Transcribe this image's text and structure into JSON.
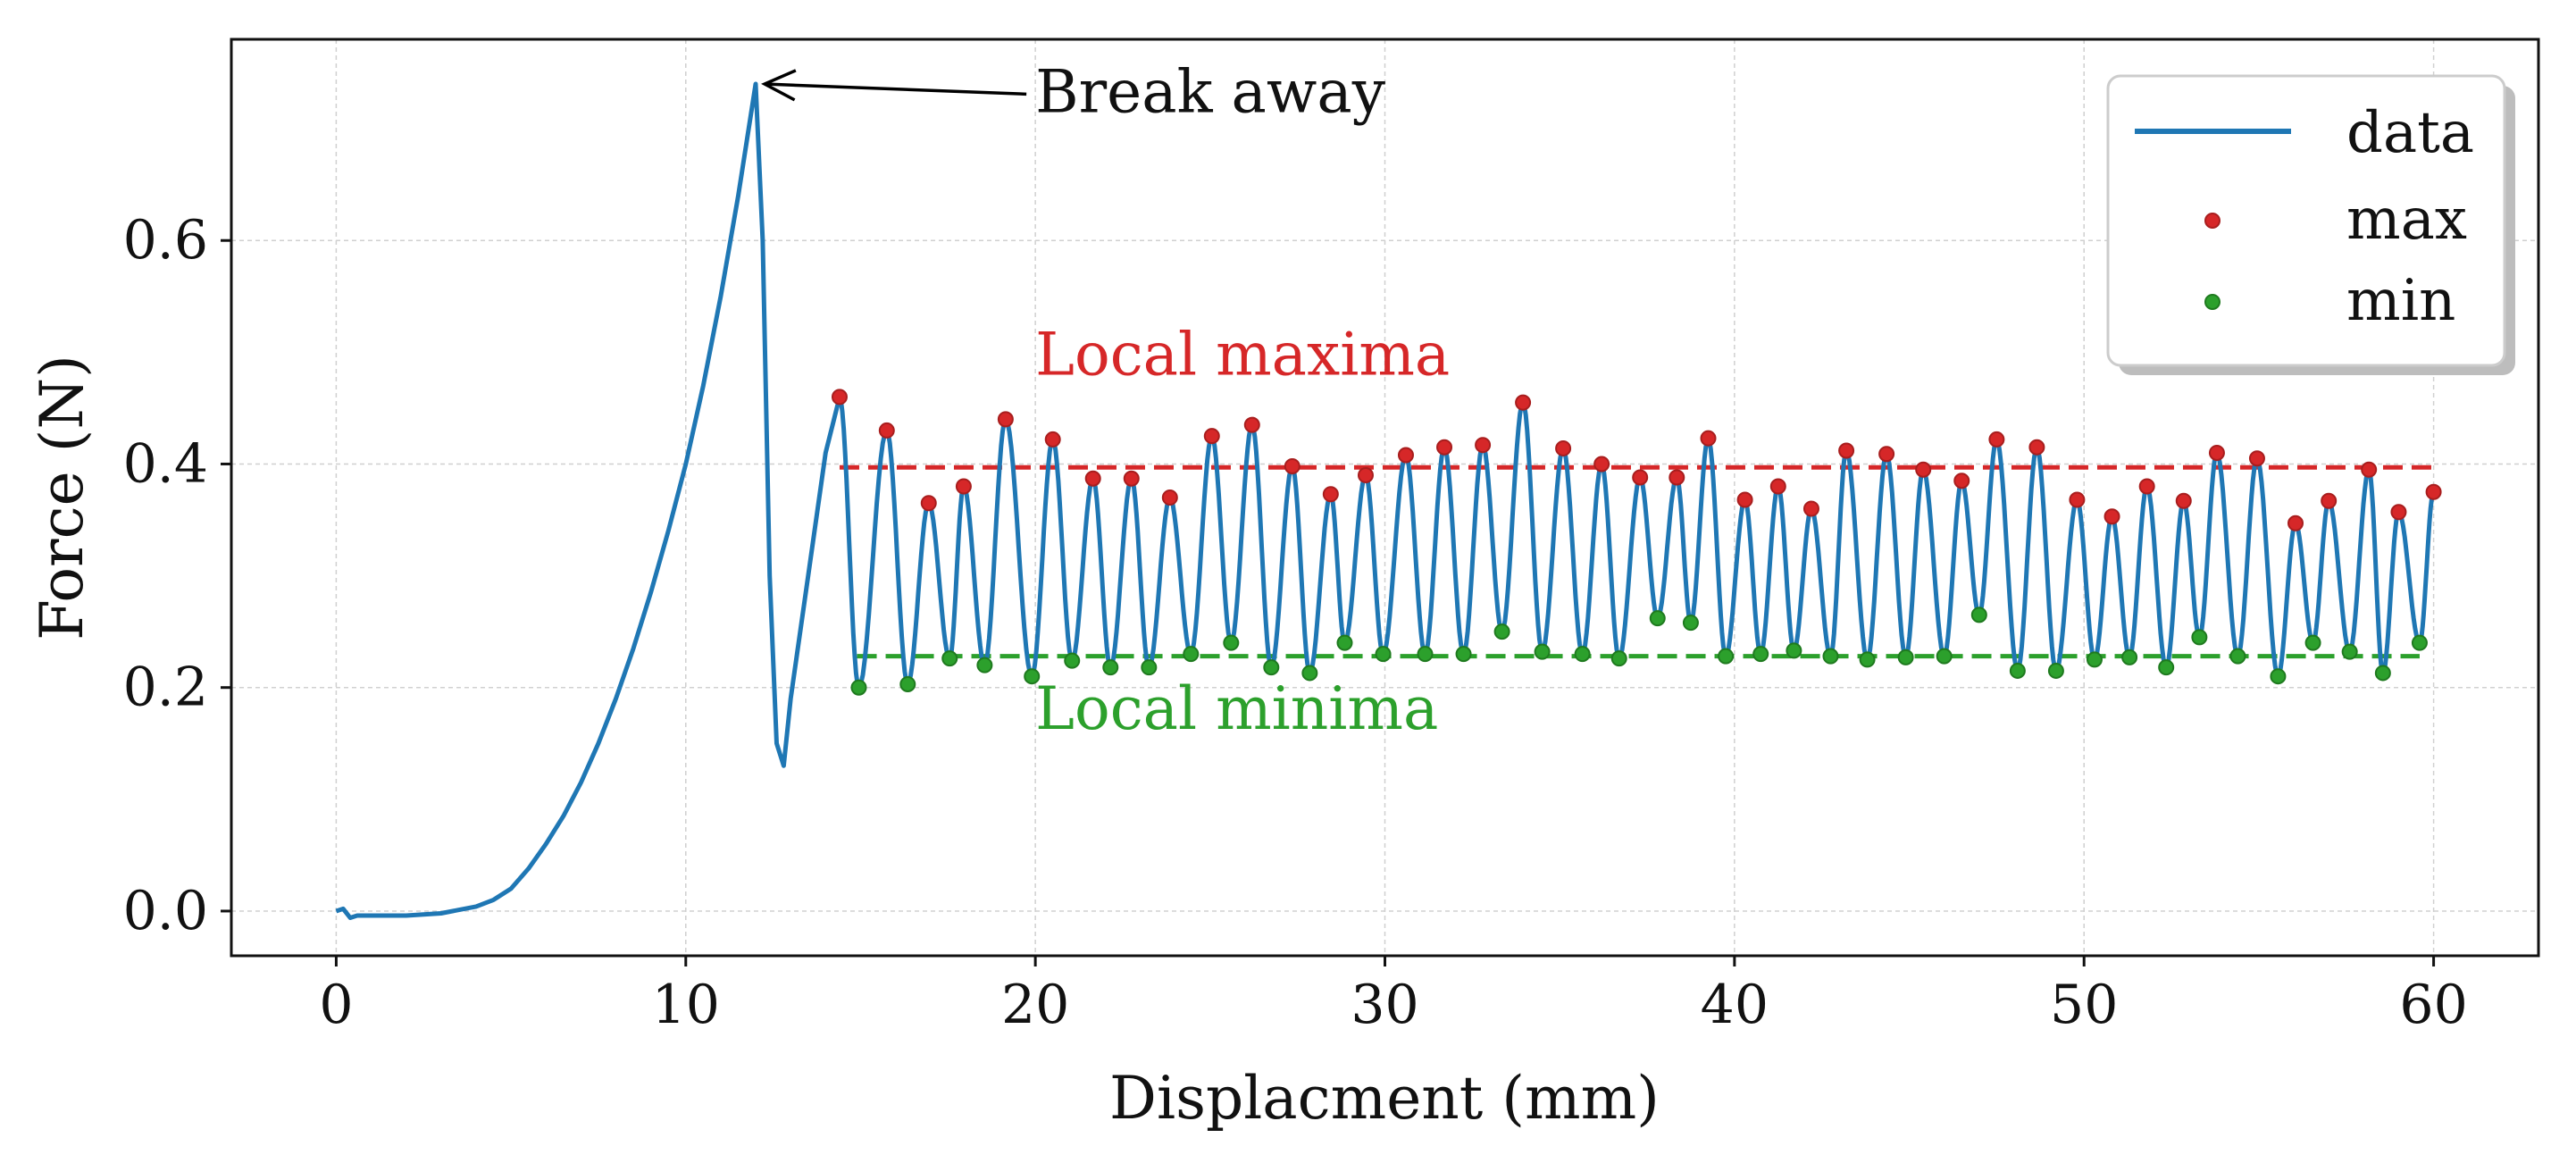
{
  "chart_data": {
    "type": "line",
    "title": "",
    "xlabel": "Displacment (mm)",
    "ylabel": "Force (N)",
    "xlim": [
      -3,
      63
    ],
    "ylim": [
      -0.04,
      0.78
    ],
    "x_ticks": [
      0,
      10,
      20,
      30,
      40,
      50,
      60
    ],
    "y_ticks": [
      0.0,
      0.2,
      0.4,
      0.6
    ],
    "x_tick_labels": [
      "0",
      "10",
      "20",
      "30",
      "40",
      "50",
      "60"
    ],
    "y_tick_labels": [
      "0.0",
      "0.2",
      "0.4",
      "0.6"
    ],
    "grid": true,
    "legend_position": "top-right",
    "colors": {
      "data": "#1f77b4",
      "max": "#d62728",
      "min": "#2ca02c",
      "arrow": "#000000"
    },
    "series": [
      {
        "name": "data",
        "style": "line",
        "x": [
          0,
          0.2,
          0.4,
          0.6,
          1.0,
          2.0,
          3.0,
          4.0,
          4.5,
          5.0,
          5.5,
          6.0,
          6.5,
          7.0,
          7.5,
          8.0,
          8.5,
          9.0,
          9.5,
          10.0,
          10.5,
          11.0,
          11.5,
          11.8,
          12.0,
          12.2,
          12.4,
          12.6,
          12.8,
          13.0,
          13.5,
          14.0,
          14.4
        ],
        "y": [
          0.0,
          0.002,
          -0.006,
          -0.004,
          -0.004,
          -0.004,
          -0.002,
          0.004,
          0.01,
          0.02,
          0.038,
          0.06,
          0.085,
          0.115,
          0.15,
          0.19,
          0.235,
          0.285,
          0.34,
          0.4,
          0.47,
          0.55,
          0.64,
          0.7,
          0.74,
          0.6,
          0.3,
          0.15,
          0.13,
          0.19,
          0.3,
          0.41,
          0.46
        ]
      },
      {
        "name": "max",
        "style": "scatter",
        "x": [
          14.4,
          15.75,
          16.95,
          17.95,
          19.15,
          20.5,
          21.65,
          22.75,
          23.85,
          25.05,
          26.2,
          27.35,
          28.45,
          29.45,
          30.6,
          31.7,
          32.8,
          33.95,
          35.1,
          36.2,
          37.3,
          38.35,
          39.25,
          40.3,
          41.25,
          42.2,
          43.2,
          44.35,
          45.4,
          46.5,
          47.5,
          48.65,
          49.8,
          50.8,
          51.8,
          52.85,
          53.8,
          54.95,
          56.05,
          57.0,
          58.15,
          59.0,
          60.0
        ],
        "y": [
          0.46,
          0.43,
          0.365,
          0.38,
          0.44,
          0.422,
          0.387,
          0.387,
          0.37,
          0.425,
          0.435,
          0.398,
          0.373,
          0.39,
          0.408,
          0.415,
          0.417,
          0.455,
          0.414,
          0.4,
          0.388,
          0.388,
          0.423,
          0.368,
          0.38,
          0.36,
          0.412,
          0.409,
          0.395,
          0.385,
          0.422,
          0.415,
          0.368,
          0.353,
          0.38,
          0.367,
          0.41,
          0.405,
          0.347,
          0.367,
          0.395,
          0.357,
          0.375
        ]
      },
      {
        "name": "min",
        "style": "scatter",
        "x": [
          14.95,
          16.35,
          17.55,
          18.55,
          19.9,
          21.05,
          22.15,
          23.25,
          24.45,
          25.6,
          26.75,
          27.85,
          28.85,
          29.95,
          31.15,
          32.25,
          33.35,
          34.5,
          35.65,
          36.7,
          37.8,
          38.75,
          39.75,
          40.75,
          41.7,
          42.75,
          43.8,
          44.9,
          46.0,
          47.0,
          48.1,
          49.2,
          50.3,
          51.3,
          52.35,
          53.3,
          54.4,
          55.55,
          56.55,
          57.6,
          58.55,
          59.6
        ],
        "y": [
          0.2,
          0.203,
          0.226,
          0.22,
          0.21,
          0.224,
          0.218,
          0.218,
          0.23,
          0.24,
          0.218,
          0.213,
          0.24,
          0.23,
          0.23,
          0.23,
          0.25,
          0.232,
          0.23,
          0.226,
          0.262,
          0.258,
          0.228,
          0.23,
          0.233,
          0.228,
          0.225,
          0.227,
          0.228,
          0.265,
          0.215,
          0.215,
          0.225,
          0.227,
          0.218,
          0.245,
          0.228,
          0.21,
          0.24,
          0.232,
          0.213,
          0.24
        ]
      }
    ],
    "reference_lines": [
      {
        "label": "Local maxima",
        "y": 0.397,
        "x_range": [
          14.4,
          60.0
        ],
        "color": "#d62728",
        "style": "dashed"
      },
      {
        "label": "Local minima",
        "y": 0.228,
        "x_range": [
          14.9,
          59.6
        ],
        "color": "#2ca02c",
        "style": "dashed"
      }
    ],
    "annotations": [
      {
        "text": "Break away",
        "text_x": 20.0,
        "text_y": 0.715,
        "arrow_to_x": 12.0,
        "arrow_to_y": 0.74
      },
      {
        "text": "Local maxima",
        "text_x": 20.0,
        "text_y": 0.48,
        "color": "#d62728"
      },
      {
        "text": "Local minima",
        "text_x": 20.0,
        "text_y": 0.163,
        "color": "#2ca02c"
      }
    ]
  }
}
